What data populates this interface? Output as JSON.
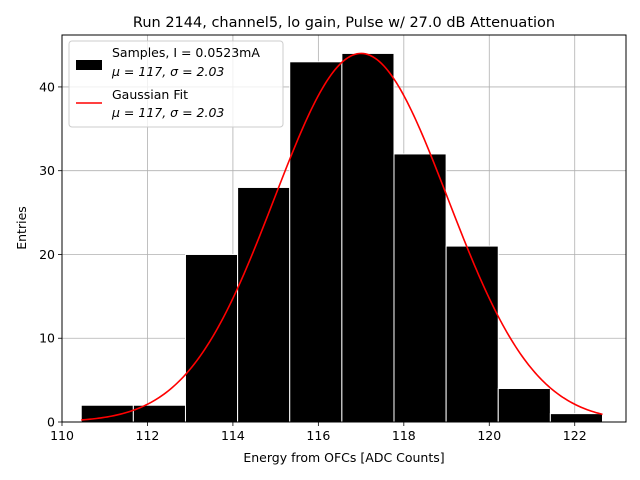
{
  "chart_data": {
    "type": "bar",
    "title": "Run 2144, channel5, lo gain, Pulse w/ 27.0 dB Attenuation",
    "xlabel": "Energy from OFCs [ADC Counts]",
    "ylabel": "Entries",
    "xlim": [
      110.0,
      123.2
    ],
    "ylim": [
      0,
      46.2
    ],
    "xticks": [
      110,
      112,
      114,
      116,
      118,
      120,
      122
    ],
    "yticks": [
      0,
      10,
      20,
      30,
      40
    ],
    "grid": true,
    "legend_position": "top-left",
    "bin_edges": [
      110.45,
      111.67,
      112.89,
      114.11,
      115.33,
      116.55,
      117.77,
      118.99,
      120.21,
      121.43,
      122.65
    ],
    "counts": [
      2,
      2,
      20,
      28,
      43,
      44,
      32,
      21,
      4,
      1
    ],
    "series": [
      {
        "name": "Samples, I = 0.0523mA",
        "name_line2": "μ = 117, σ = 2.03",
        "kind": "histogram",
        "color": "#000000"
      },
      {
        "name": "Gaussian Fit",
        "name_line2": "μ = 117, σ = 2.03",
        "kind": "line",
        "color": "#ff0000",
        "mu": 117.0,
        "sigma": 2.03,
        "amplitude": 44
      }
    ]
  }
}
